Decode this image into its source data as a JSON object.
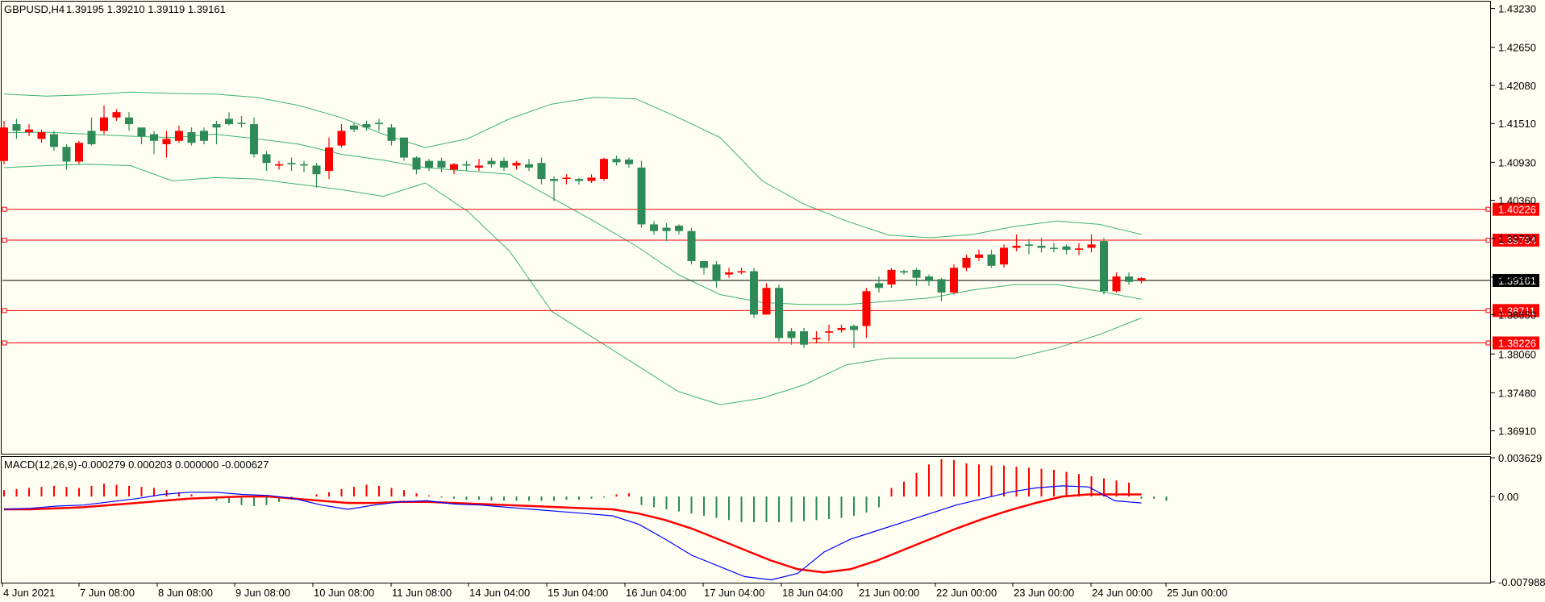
{
  "header": {
    "symbol": "GBPUSD,H4",
    "ohlc": "1.39195 1.39210 1.39119 1.39161"
  },
  "colors": {
    "background": "#fefef2",
    "bull": "#2e8b57",
    "bear": "#ff0000",
    "band": "#3cb371",
    "macd": "#0000ff",
    "signal": "#ff0000",
    "level": "#ff0000",
    "current": "#000000"
  },
  "chart_data": [
    {
      "type": "candlestick",
      "title": "GBPUSD,H4",
      "ylim": [
        1.3658,
        1.4331
      ],
      "y_ticks": [
        "1.43230",
        "1.42650",
        "1.42080",
        "1.41510",
        "1.40930",
        "1.40360",
        "1.39790",
        "1.39210",
        "1.38650",
        "1.38060",
        "1.37480",
        "1.36910"
      ],
      "x_ticks": [
        "4 Jun 2021",
        "7 Jun 08:00",
        "8 Jun 08:00",
        "9 Jun 08:00",
        "10 Jun 08:00",
        "11 Jun 08:00",
        "14 Jun 04:00",
        "15 Jun 04:00",
        "16 Jun 04:00",
        "17 Jun 04:00",
        "18 Jun 04:00",
        "21 Jun 00:00",
        "22 Jun 00:00",
        "23 Jun 00:00",
        "24 Jun 00:00",
        "25 Jun 00:00"
      ],
      "current_price": "1.39161",
      "levels": [
        "1.40226",
        "1.39764",
        "1.38711",
        "1.38226"
      ],
      "candles": [
        [
          1.4145,
          1.4155,
          1.409,
          1.4095
        ],
        [
          1.414,
          1.4158,
          1.4128,
          1.415
        ],
        [
          1.4142,
          1.415,
          1.4132,
          1.4138
        ],
        [
          1.4138,
          1.4142,
          1.4122,
          1.4128
        ],
        [
          1.4116,
          1.414,
          1.411,
          1.4135
        ],
        [
          1.4094,
          1.412,
          1.4082,
          1.4116
        ],
        [
          1.4122,
          1.4125,
          1.409,
          1.4094
        ],
        [
          1.412,
          1.416,
          1.4118,
          1.414
        ],
        [
          1.416,
          1.4178,
          1.4135,
          1.414
        ],
        [
          1.4168,
          1.4172,
          1.4155,
          1.416
        ],
        [
          1.415,
          1.4168,
          1.414,
          1.416
        ],
        [
          1.4132,
          1.4145,
          1.412,
          1.4145
        ],
        [
          1.4125,
          1.414,
          1.4105,
          1.4135
        ],
        [
          1.4128,
          1.414,
          1.41,
          1.412
        ],
        [
          1.414,
          1.4148,
          1.4122,
          1.4125
        ],
        [
          1.4122,
          1.4145,
          1.4118,
          1.4138
        ],
        [
          1.4125,
          1.4145,
          1.412,
          1.414
        ],
        [
          1.4145,
          1.4155,
          1.412,
          1.415
        ],
        [
          1.415,
          1.4168,
          1.4148,
          1.4158
        ],
        [
          1.4152,
          1.4162,
          1.4145,
          1.4152
        ],
        [
          1.4105,
          1.416,
          1.41,
          1.415
        ],
        [
          1.4092,
          1.411,
          1.408,
          1.4105
        ],
        [
          1.409,
          1.4095,
          1.4082,
          1.4088
        ],
        [
          1.409,
          1.41,
          1.408,
          1.4092
        ],
        [
          1.4088,
          1.4095,
          1.4078,
          1.409
        ],
        [
          1.4075,
          1.4092,
          1.4055,
          1.4088
        ],
        [
          1.4115,
          1.413,
          1.4068,
          1.408
        ],
        [
          1.414,
          1.415,
          1.4115,
          1.4118
        ],
        [
          1.4142,
          1.4152,
          1.4138,
          1.4148
        ],
        [
          1.4145,
          1.4155,
          1.414,
          1.415
        ],
        [
          1.415,
          1.4158,
          1.414,
          1.4152
        ],
        [
          1.4125,
          1.415,
          1.4118,
          1.4145
        ],
        [
          1.41,
          1.413,
          1.4095,
          1.413
        ],
        [
          1.4082,
          1.4102,
          1.4075,
          1.41
        ],
        [
          1.4085,
          1.4098,
          1.408,
          1.4095
        ],
        [
          1.4085,
          1.41,
          1.4078,
          1.4095
        ],
        [
          1.409,
          1.4092,
          1.4075,
          1.4082
        ],
        [
          1.4088,
          1.4095,
          1.408,
          1.409
        ],
        [
          1.4088,
          1.4098,
          1.408,
          1.4085
        ],
        [
          1.409,
          1.41,
          1.4085,
          1.4095
        ],
        [
          1.4085,
          1.41,
          1.408,
          1.4095
        ],
        [
          1.4092,
          1.4095,
          1.4082,
          1.4088
        ],
        [
          1.4085,
          1.4098,
          1.408,
          1.409
        ],
        [
          1.4068,
          1.41,
          1.406,
          1.4092
        ],
        [
          1.4065,
          1.4072,
          1.4035,
          1.4068
        ],
        [
          1.407,
          1.4075,
          1.406,
          1.4068
        ],
        [
          1.4065,
          1.407,
          1.406,
          1.4068
        ],
        [
          1.407,
          1.4075,
          1.4062,
          1.4065
        ],
        [
          1.4098,
          1.41,
          1.4065,
          1.4068
        ],
        [
          1.4093,
          1.4103,
          1.4088,
          1.4098
        ],
        [
          1.409,
          1.41,
          1.4085,
          1.4097
        ],
        [
          1.4,
          1.4095,
          1.3995,
          1.4085
        ],
        [
          1.399,
          1.4005,
          1.3985,
          1.4
        ],
        [
          1.399,
          1.4002,
          1.3975,
          1.3995
        ],
        [
          1.399,
          1.4,
          1.3985,
          1.3998
        ],
        [
          1.3945,
          1.3995,
          1.394,
          1.399
        ],
        [
          1.3935,
          1.3945,
          1.3925,
          1.3945
        ],
        [
          1.3915,
          1.3945,
          1.3905,
          1.394
        ],
        [
          1.3928,
          1.3935,
          1.392,
          1.3925
        ],
        [
          1.393,
          1.3935,
          1.3925,
          1.3928
        ],
        [
          1.3865,
          1.3935,
          1.386,
          1.393
        ],
        [
          1.3905,
          1.3912,
          1.3865,
          1.3865
        ],
        [
          1.383,
          1.391,
          1.3825,
          1.3905
        ],
        [
          1.383,
          1.3845,
          1.382,
          1.384
        ],
        [
          1.382,
          1.3845,
          1.3815,
          1.384
        ],
        [
          1.383,
          1.384,
          1.3822,
          1.3828
        ],
        [
          1.384,
          1.385,
          1.3825,
          1.3838
        ],
        [
          1.3845,
          1.385,
          1.3838,
          1.3842
        ],
        [
          1.3842,
          1.385,
          1.3815,
          1.3848
        ],
        [
          1.39,
          1.3905,
          1.383,
          1.3848
        ],
        [
          1.3905,
          1.3922,
          1.3898,
          1.3912
        ],
        [
          1.3932,
          1.3935,
          1.3905,
          1.391
        ],
        [
          1.3928,
          1.3932,
          1.3925,
          1.393
        ],
        [
          1.392,
          1.3935,
          1.3908,
          1.3932
        ],
        [
          1.3915,
          1.3925,
          1.3908,
          1.3922
        ],
        [
          1.3898,
          1.392,
          1.3885,
          1.3918
        ],
        [
          1.3935,
          1.394,
          1.3895,
          1.3898
        ],
        [
          1.395,
          1.3955,
          1.393,
          1.3935
        ],
        [
          1.3955,
          1.3962,
          1.3945,
          1.395
        ],
        [
          1.3938,
          1.3962,
          1.3935,
          1.3955
        ],
        [
          1.3965,
          1.397,
          1.3935,
          1.394
        ],
        [
          1.3968,
          1.3985,
          1.396,
          1.3965
        ],
        [
          1.3968,
          1.3978,
          1.3955,
          1.397
        ],
        [
          1.3965,
          1.398,
          1.3958,
          1.3968
        ],
        [
          1.3965,
          1.3972,
          1.3958,
          1.3965
        ],
        [
          1.3962,
          1.397,
          1.3955,
          1.3967
        ],
        [
          1.3964,
          1.3972,
          1.3954,
          1.3962
        ],
        [
          1.397,
          1.3985,
          1.3958,
          1.3965
        ],
        [
          1.39,
          1.398,
          1.3895,
          1.3975
        ],
        [
          1.3922,
          1.3928,
          1.3898,
          1.39
        ],
        [
          1.3914,
          1.3928,
          1.391,
          1.3922
        ],
        [
          1.39195,
          1.3921,
          1.39119,
          1.39161
        ]
      ],
      "bollinger": {
        "upper": [
          1.4195,
          1.4192,
          1.4194,
          1.4198,
          1.4196,
          1.4195,
          1.419,
          1.4178,
          1.416,
          1.4135,
          1.4115,
          1.4128,
          1.4158,
          1.418,
          1.419,
          1.4188,
          1.416,
          1.413,
          1.4065,
          1.403,
          1.4005,
          1.3984,
          1.398,
          1.3985,
          1.3997,
          1.4005,
          1.4,
          1.3985
        ],
        "middle": [
          1.4137,
          1.4138,
          1.4135,
          1.4132,
          1.413,
          1.4135,
          1.4128,
          1.412,
          1.4105,
          1.4096,
          1.4085,
          1.408,
          1.4075,
          1.404,
          1.4005,
          1.3968,
          1.3925,
          1.3895,
          1.3883,
          1.388,
          1.388,
          1.3885,
          1.389,
          1.3902,
          1.391,
          1.391,
          1.39,
          1.3888
        ],
        "lower": [
          1.4085,
          1.4088,
          1.409,
          1.4088,
          1.4065,
          1.407,
          1.4068,
          1.406,
          1.4052,
          1.4042,
          1.4062,
          1.402,
          1.396,
          1.387,
          1.383,
          1.379,
          1.375,
          1.373,
          1.374,
          1.376,
          1.379,
          1.38,
          1.38,
          1.38,
          1.38,
          1.3815,
          1.3835,
          1.386
        ]
      }
    },
    {
      "type": "macd",
      "title": "MACD(12,26,9)",
      "values_text": "-0.000279 0.000203 0.000000 -0.000627",
      "ylim": [
        -0.007988,
        0.003629
      ],
      "y_ticks": [
        "0.003629",
        "0.00",
        "-0.007988"
      ],
      "histogram": [
        0.0006,
        0.0007,
        0.0008,
        0.0009,
        0.001,
        0.0009,
        0.0008,
        0.001,
        0.0012,
        0.0011,
        0.001,
        0.0009,
        0.0008,
        0.0006,
        0.0004,
        0.0002,
        0.0,
        -0.0004,
        -0.0006,
        -0.0008,
        -0.0009,
        -0.0008,
        -0.0005,
        -0.0003,
        0.0,
        0.0002,
        0.0004,
        0.0007,
        0.0009,
        0.0011,
        0.001,
        0.0008,
        0.0006,
        0.0003,
        0.0001,
        -0.0001,
        -0.0002,
        -0.0003,
        -0.0003,
        -0.0004,
        -0.0004,
        -0.0004,
        -0.0004,
        -0.0004,
        -0.0004,
        -0.0003,
        -0.0003,
        -0.0002,
        -0.0001,
        0.0002,
        0.0003,
        -0.0008,
        -0.001,
        -0.0012,
        -0.0014,
        -0.0016,
        -0.0018,
        -0.002,
        -0.0022,
        -0.0024,
        -0.0024,
        -0.0024,
        -0.0024,
        -0.0024,
        -0.0023,
        -0.0022,
        -0.0021,
        -0.002,
        -0.0018,
        -0.0015,
        -0.001,
        0.0008,
        0.0014,
        0.0022,
        0.003,
        0.0035,
        0.0034,
        0.0031,
        0.003,
        0.0029,
        0.0029,
        0.0028,
        0.0027,
        0.0026,
        0.0025,
        0.0023,
        0.0021,
        0.0019,
        0.0017,
        0.0015,
        0.0013,
        -0.0002,
        -0.0002,
        -0.0004
      ],
      "macd_line": [
        -0.0012,
        -0.0011,
        -0.0009,
        -0.0008,
        -0.0005,
        -0.0002,
        0.0002,
        0.0004,
        0.0004,
        0.0002,
        0.0001,
        -0.0002,
        -0.0008,
        -0.0012,
        -0.0008,
        -0.0005,
        -0.0004,
        -0.0007,
        -0.0008,
        -0.001,
        -0.0012,
        -0.0014,
        -0.0016,
        -0.0018,
        -0.0026,
        -0.004,
        -0.0055,
        -0.0065,
        -0.0075,
        -0.0078,
        -0.0072,
        -0.0052,
        -0.004,
        -0.0032,
        -0.0024,
        -0.0016,
        -0.0008,
        -0.0002,
        0.0004,
        0.0008,
        0.001,
        0.0009,
        -0.0004,
        -0.0006
      ],
      "signal_line": [
        -0.0012,
        -0.0012,
        -0.0011,
        -0.001,
        -0.0008,
        -0.0006,
        -0.0004,
        -0.0002,
        -0.0001,
        0.0,
        0.0,
        -0.0002,
        -0.0004,
        -0.0006,
        -0.0006,
        -0.0005,
        -0.0005,
        -0.0006,
        -0.0007,
        -0.0008,
        -0.0009,
        -0.001,
        -0.0011,
        -0.0012,
        -0.0016,
        -0.0022,
        -0.003,
        -0.004,
        -0.005,
        -0.006,
        -0.0068,
        -0.0071,
        -0.0068,
        -0.006,
        -0.005,
        -0.004,
        -0.003,
        -0.0021,
        -0.0013,
        -0.0006,
        0.0,
        0.0002,
        0.0002,
        0.0002
      ]
    }
  ]
}
